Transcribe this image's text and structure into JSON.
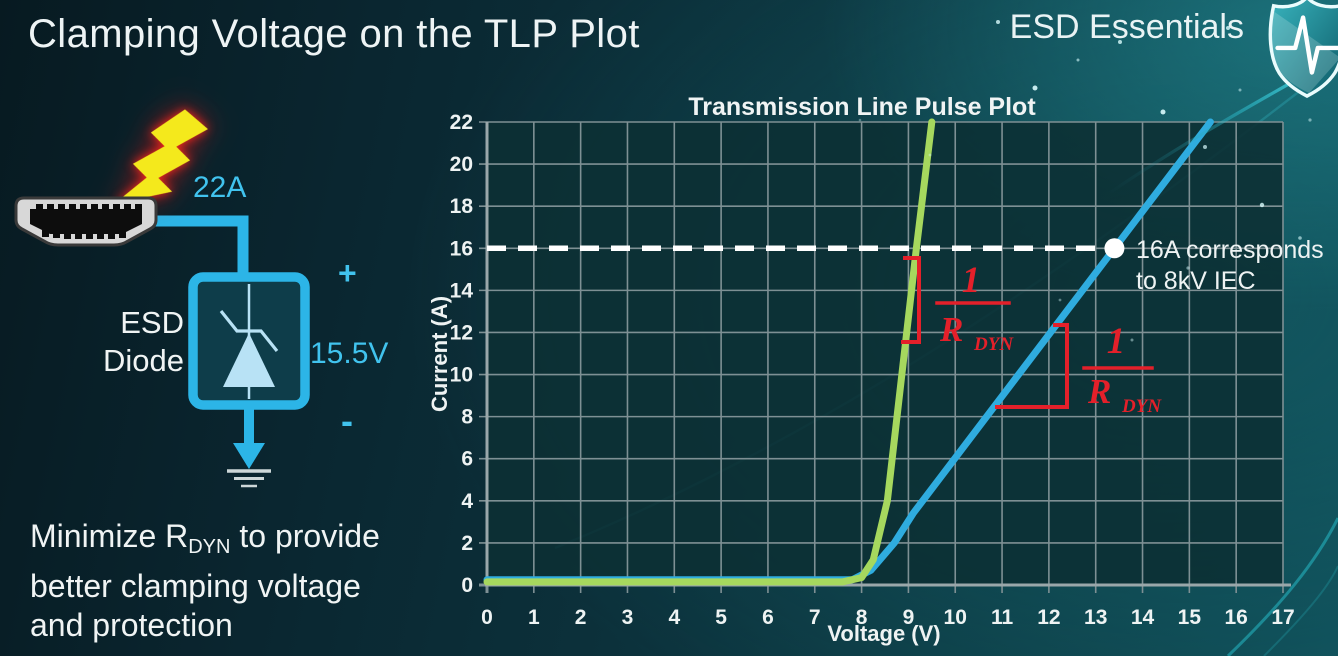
{
  "slide": {
    "title": "Clamping Voltage on the TLP Plot",
    "brand": "ESD Essentials"
  },
  "diagram": {
    "surge_current": "22A",
    "device_line1": "ESD",
    "device_line2": "Diode",
    "polarity_plus": "+",
    "clamp_voltage": "15.5V",
    "polarity_minus": "-"
  },
  "note": {
    "line1_prefix": "Minimize R",
    "line1_sub": "DYN",
    "line1_suffix": " to provide",
    "line2": "better clamping voltage",
    "line3": "and protection"
  },
  "colors": {
    "accent_cyan": "#41c3ee",
    "annotation_red": "#e4202a",
    "grid_gray": "#7e9094",
    "dashed_white": "#ffffff"
  },
  "chart_data": {
    "type": "line",
    "title": "Transmission Line Pulse Plot",
    "xlabel": "Voltage (V)",
    "ylabel": "Current (A)",
    "xlim": [
      0,
      17
    ],
    "ylim": [
      0,
      22
    ],
    "xticks": [
      0,
      1,
      2,
      3,
      4,
      5,
      6,
      7,
      8,
      9,
      10,
      11,
      12,
      13,
      14,
      15,
      16,
      17
    ],
    "yticks": [
      0,
      2,
      4,
      6,
      8,
      10,
      12,
      14,
      16,
      18,
      20,
      22
    ],
    "grid": true,
    "legend": "none",
    "series": [
      {
        "name": "high-rdyn-tlp-curve",
        "color": "#2facdf",
        "points": [
          [
            0,
            0.25
          ],
          [
            7.8,
            0.25
          ],
          [
            8.2,
            0.7
          ],
          [
            8.7,
            2.0
          ],
          [
            9.1,
            3.4
          ],
          [
            13.4,
            16
          ],
          [
            15.45,
            22
          ]
        ]
      },
      {
        "name": "low-rdyn-esd-diode-tlp-curve",
        "color": "#a6d85e",
        "points": [
          [
            0,
            0.15
          ],
          [
            7.6,
            0.15
          ],
          [
            8.0,
            0.35
          ],
          [
            8.25,
            1.2
          ],
          [
            8.55,
            4.0
          ],
          [
            9.17,
            16
          ],
          [
            9.5,
            22
          ]
        ]
      }
    ],
    "threshold": {
      "y": 16,
      "x_start": 0,
      "x_end": 13.4,
      "style": "dashed-white"
    },
    "marker": {
      "x": 13.4,
      "y": 16,
      "label_line1": "16A corresponds",
      "label_line2": "to 8kV IEC"
    },
    "annotations": [
      {
        "id": "rdyn-slope-green",
        "numerator": "1",
        "denominator": "R",
        "denominator_sub": "DYN"
      },
      {
        "id": "rdyn-slope-blue",
        "numerator": "1",
        "denominator": "R",
        "denominator_sub": "DYN"
      }
    ]
  }
}
